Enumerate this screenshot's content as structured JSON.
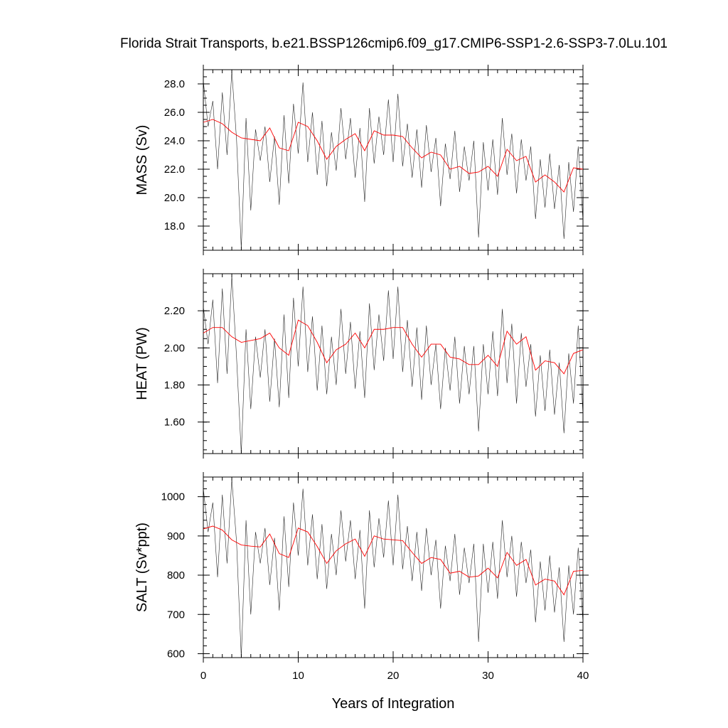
{
  "figure": {
    "title": "Florida Strait Transports, b.e21.BSSP126cmip6.f09_g17.CMIP6-SSP1-2.6-SSP3-7.0Lu.101",
    "xlabel": "Years of Integration"
  },
  "colors": {
    "raw": "#000000",
    "smooth": "#ff0000"
  },
  "chart_data": [
    {
      "type": "line",
      "ylabel": "MASS (Sv)",
      "xlim": [
        0,
        40
      ],
      "ylim": [
        16.3,
        29.0
      ],
      "x_ticks": [
        0,
        10,
        20,
        30,
        40
      ],
      "y_ticks": [
        18.0,
        20.0,
        22.0,
        24.0,
        26.0,
        28.0
      ],
      "y_tick_labels": [
        "18.0",
        "20.0",
        "22.0",
        "24.0",
        "26.0",
        "28.0"
      ],
      "y_minor_step": 0.5,
      "series": [
        {
          "style": "raw",
          "x": [
            0,
            0.5,
            1,
            1.5,
            2,
            2.5,
            3,
            3.5,
            4,
            4.5,
            5,
            5.5,
            6,
            6.5,
            7,
            7.5,
            8,
            8.5,
            9,
            9.5,
            10,
            10.5,
            11,
            11.5,
            12,
            12.5,
            13,
            13.5,
            14,
            14.5,
            15,
            15.5,
            16,
            16.5,
            17,
            17.5,
            18,
            18.5,
            19,
            19.5,
            20,
            20.5,
            21,
            21.5,
            22,
            22.5,
            23,
            23.5,
            24,
            24.5,
            25,
            25.5,
            26,
            26.5,
            27,
            27.5,
            28,
            28.5,
            29,
            29.5,
            30,
            30.5,
            31,
            31.5,
            32,
            32.5,
            33,
            33.5,
            34,
            34.5,
            35,
            35.5,
            36,
            36.5,
            37,
            37.5,
            38,
            38.5,
            39,
            39.5,
            40
          ],
          "values": [
            28.2,
            25.0,
            26.8,
            22.0,
            27.4,
            23.0,
            28.9,
            24.1,
            16.4,
            25.6,
            19.1,
            24.8,
            22.6,
            25.0,
            21.1,
            24.3,
            19.5,
            25.8,
            21.0,
            26.6,
            23.1,
            28.1,
            22.5,
            26.0,
            21.6,
            25.4,
            20.8,
            24.6,
            21.9,
            26.3,
            22.7,
            25.6,
            21.4,
            24.9,
            19.7,
            26.3,
            22.4,
            25.7,
            23.0,
            26.9,
            22.5,
            27.3,
            22.2,
            25.2,
            21.4,
            24.8,
            20.7,
            25.1,
            21.8,
            24.2,
            19.4,
            23.8,
            21.3,
            24.7,
            20.4,
            23.6,
            21.2,
            24.0,
            17.2,
            23.9,
            20.5,
            24.1,
            20.2,
            25.6,
            21.6,
            24.5,
            20.3,
            24.1,
            21.2,
            23.6,
            18.5,
            22.7,
            19.3,
            23.1,
            19.2,
            22.3,
            17.1,
            22.5,
            19.0,
            23.6,
            18.4
          ]
        },
        {
          "style": "smooth",
          "x": [
            0,
            1,
            2,
            3,
            4,
            5,
            6,
            7,
            8,
            9,
            10,
            11,
            12,
            13,
            14,
            15,
            16,
            17,
            18,
            19,
            20,
            21,
            22,
            23,
            24,
            25,
            26,
            27,
            28,
            29,
            30,
            31,
            32,
            33,
            34,
            35,
            36,
            37,
            38,
            39,
            40
          ],
          "values": [
            25.3,
            25.5,
            25.2,
            24.6,
            24.2,
            24.1,
            24.0,
            24.9,
            23.5,
            23.3,
            25.3,
            25.0,
            24.0,
            22.7,
            23.6,
            24.1,
            24.5,
            23.3,
            24.7,
            24.4,
            24.4,
            24.3,
            23.5,
            22.8,
            23.2,
            23.0,
            22.0,
            22.2,
            21.7,
            21.8,
            22.2,
            21.5,
            23.4,
            22.6,
            22.9,
            21.1,
            21.6,
            21.1,
            20.4,
            22.1,
            22.0
          ]
        }
      ]
    },
    {
      "type": "line",
      "ylabel": "HEAT (PW)",
      "xlim": [
        0,
        40
      ],
      "ylim": [
        1.43,
        2.4
      ],
      "x_ticks": [
        0,
        10,
        20,
        30,
        40
      ],
      "y_ticks": [
        1.6,
        1.8,
        2.0,
        2.2
      ],
      "y_tick_labels": [
        "1.60",
        "1.80",
        "2.00",
        "2.20"
      ],
      "y_minor_step": 0.05,
      "series": [
        {
          "style": "raw",
          "x": [
            0,
            0.5,
            1,
            1.5,
            2,
            2.5,
            3,
            3.5,
            4,
            4.5,
            5,
            5.5,
            6,
            6.5,
            7,
            7.5,
            8,
            8.5,
            9,
            9.5,
            10,
            10.5,
            11,
            11.5,
            12,
            12.5,
            13,
            13.5,
            14,
            14.5,
            15,
            15.5,
            16,
            16.5,
            17,
            17.5,
            18,
            18.5,
            19,
            19.5,
            20,
            20.5,
            21,
            21.5,
            22,
            22.5,
            23,
            23.5,
            24,
            24.5,
            25,
            25.5,
            26,
            26.5,
            27,
            27.5,
            28,
            28.5,
            29,
            29.5,
            30,
            30.5,
            31,
            31.5,
            32,
            32.5,
            33,
            33.5,
            34,
            34.5,
            35,
            35.5,
            36,
            36.5,
            37,
            37.5,
            38,
            38.5,
            39,
            39.5,
            40
          ],
          "values": [
            2.22,
            2.02,
            2.26,
            1.81,
            2.32,
            1.86,
            2.39,
            1.95,
            1.43,
            2.1,
            1.67,
            2.06,
            1.84,
            2.1,
            1.71,
            2.05,
            1.68,
            2.18,
            1.73,
            2.27,
            1.9,
            2.33,
            1.87,
            2.17,
            1.77,
            2.12,
            1.75,
            2.06,
            1.8,
            2.21,
            1.86,
            2.14,
            1.78,
            2.09,
            1.73,
            2.24,
            1.88,
            2.18,
            1.93,
            2.31,
            1.94,
            2.33,
            1.87,
            2.15,
            1.79,
            2.11,
            1.72,
            2.12,
            1.8,
            2.02,
            1.67,
            2.0,
            1.77,
            2.06,
            1.7,
            2.01,
            1.75,
            2.01,
            1.55,
            2.02,
            1.75,
            2.09,
            1.74,
            2.21,
            1.81,
            2.13,
            1.7,
            2.08,
            1.79,
            2.02,
            1.63,
            1.96,
            1.66,
            1.99,
            1.64,
            1.92,
            1.54,
            1.97,
            1.7,
            2.12,
            1.64
          ]
        },
        {
          "style": "smooth",
          "x": [
            0,
            1,
            2,
            3,
            4,
            5,
            6,
            7,
            8,
            9,
            10,
            11,
            12,
            13,
            14,
            15,
            16,
            17,
            18,
            19,
            20,
            21,
            22,
            23,
            24,
            25,
            26,
            27,
            28,
            29,
            30,
            31,
            32,
            33,
            34,
            35,
            36,
            37,
            38,
            39,
            40
          ],
          "values": [
            2.08,
            2.11,
            2.11,
            2.06,
            2.03,
            2.04,
            2.05,
            2.08,
            2.0,
            1.96,
            2.15,
            2.12,
            2.03,
            1.92,
            1.99,
            2.02,
            2.08,
            2.0,
            2.1,
            2.1,
            2.11,
            2.11,
            2.02,
            1.95,
            2.02,
            2.02,
            1.95,
            1.94,
            1.91,
            1.91,
            1.96,
            1.9,
            2.09,
            2.02,
            2.06,
            1.88,
            1.93,
            1.92,
            1.86,
            1.97,
            1.99
          ]
        }
      ]
    },
    {
      "type": "line",
      "ylabel": "SALT (Sv*ppt)",
      "xlim": [
        0,
        40
      ],
      "ylim": [
        590,
        1050
      ],
      "x_ticks": [
        0,
        10,
        20,
        30,
        40
      ],
      "x_tick_labels": [
        "0",
        "10",
        "20",
        "30",
        "40"
      ],
      "y_ticks": [
        600,
        700,
        800,
        900,
        1000
      ],
      "y_tick_labels": [
        "600",
        "700",
        "800",
        "900",
        "1000"
      ],
      "y_minor_step": 20,
      "series": [
        {
          "style": "raw",
          "x": [
            0,
            0.5,
            1,
            1.5,
            2,
            2.5,
            3,
            3.5,
            4,
            4.5,
            5,
            5.5,
            6,
            6.5,
            7,
            7.5,
            8,
            8.5,
            9,
            9.5,
            10,
            10.5,
            11,
            11.5,
            12,
            12.5,
            13,
            13.5,
            14,
            14.5,
            15,
            15.5,
            16,
            16.5,
            17,
            17.5,
            18,
            18.5,
            19,
            19.5,
            20,
            20.5,
            21,
            21.5,
            22,
            22.5,
            23,
            23.5,
            24,
            24.5,
            25,
            25.5,
            26,
            26.5,
            27,
            27.5,
            28,
            28.5,
            29,
            29.5,
            30,
            30.5,
            31,
            31.5,
            32,
            32.5,
            33,
            33.5,
            34,
            34.5,
            35,
            35.5,
            36,
            36.5,
            37,
            37.5,
            38,
            38.5,
            39,
            39.5,
            40
          ],
          "values": [
            1020,
            910,
            985,
            795,
            1005,
            830,
            1045,
            885,
            590,
            940,
            700,
            910,
            830,
            920,
            775,
            895,
            710,
            950,
            770,
            985,
            850,
            1020,
            825,
            955,
            790,
            930,
            765,
            905,
            800,
            965,
            835,
            940,
            790,
            915,
            715,
            965,
            820,
            945,
            845,
            990,
            825,
            1005,
            815,
            925,
            785,
            910,
            760,
            920,
            800,
            890,
            715,
            875,
            785,
            905,
            750,
            870,
            780,
            880,
            630,
            880,
            755,
            885,
            740,
            940,
            795,
            900,
            745,
            885,
            780,
            865,
            680,
            835,
            710,
            850,
            705,
            820,
            630,
            825,
            700,
            870,
            680
          ]
        },
        {
          "style": "smooth",
          "x": [
            0,
            1,
            2,
            3,
            4,
            5,
            6,
            7,
            8,
            9,
            10,
            11,
            12,
            13,
            14,
            15,
            16,
            17,
            18,
            19,
            20,
            21,
            22,
            23,
            24,
            25,
            26,
            27,
            28,
            29,
            30,
            31,
            32,
            33,
            34,
            35,
            36,
            37,
            38,
            39,
            40
          ],
          "values": [
            918,
            925,
            915,
            890,
            877,
            874,
            872,
            905,
            855,
            845,
            920,
            910,
            873,
            830,
            862,
            880,
            892,
            848,
            900,
            892,
            890,
            888,
            858,
            830,
            845,
            840,
            805,
            810,
            795,
            798,
            818,
            793,
            858,
            825,
            840,
            775,
            790,
            785,
            750,
            810,
            812
          ]
        }
      ]
    }
  ]
}
